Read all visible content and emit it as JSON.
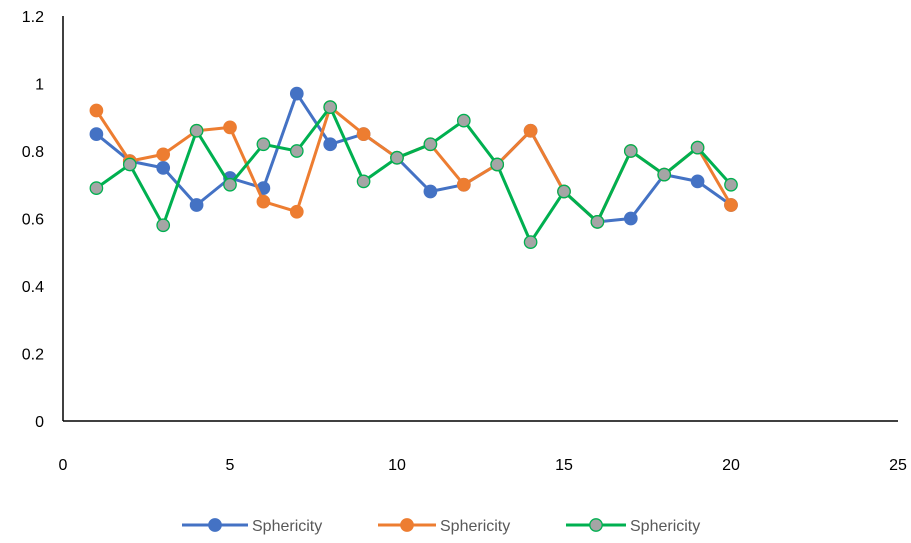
{
  "chart_data": {
    "type": "line",
    "title": "",
    "xlabel": "",
    "ylabel": "",
    "xlim": [
      0,
      25
    ],
    "ylim": [
      0,
      1.2
    ],
    "x_ticks": [
      0,
      5,
      10,
      15,
      20,
      25
    ],
    "x_tick_labels": [
      "0",
      "5",
      "10",
      "15",
      "20",
      "25"
    ],
    "y_ticks": [
      0,
      0.2,
      0.4,
      0.6,
      0.8,
      1.0,
      1.2
    ],
    "y_tick_labels": [
      "0",
      "0.2",
      "0.4",
      "0.6",
      "0.8",
      "1",
      "1.2"
    ],
    "grid": false,
    "legend_position": "bottom",
    "x": [
      1,
      2,
      3,
      4,
      5,
      6,
      7,
      8,
      9,
      10,
      11,
      12,
      13,
      14,
      15,
      16,
      17,
      18,
      19,
      20
    ],
    "series": [
      {
        "name": "Sphericity",
        "color": "#4472C4",
        "marker_fill": "#4472C4",
        "marker_stroke": "#4472C4",
        "values": [
          0.85,
          0.77,
          0.75,
          0.64,
          0.72,
          0.69,
          0.97,
          0.82,
          0.85,
          0.78,
          0.68,
          0.7,
          0.76,
          0.86,
          0.68,
          0.59,
          0.6,
          0.73,
          0.71,
          0.64
        ]
      },
      {
        "name": "Sphericity",
        "color": "#ED7D31",
        "marker_fill": "#ED7D31",
        "marker_stroke": "#ED7D31",
        "values": [
          0.92,
          0.77,
          0.79,
          0.86,
          0.87,
          0.65,
          0.62,
          0.93,
          0.85,
          0.78,
          0.82,
          0.7,
          0.76,
          0.86,
          0.68,
          0.59,
          0.8,
          0.73,
          0.81,
          0.64
        ]
      },
      {
        "name": "Sphericity",
        "color": "#00B050",
        "marker_fill": "#A5A5A5",
        "marker_stroke": "#00B050",
        "values": [
          0.69,
          0.76,
          0.58,
          0.86,
          0.7,
          0.82,
          0.8,
          0.93,
          0.71,
          0.78,
          0.82,
          0.89,
          0.76,
          0.53,
          0.68,
          0.59,
          0.8,
          0.73,
          0.81,
          0.7
        ]
      }
    ]
  }
}
